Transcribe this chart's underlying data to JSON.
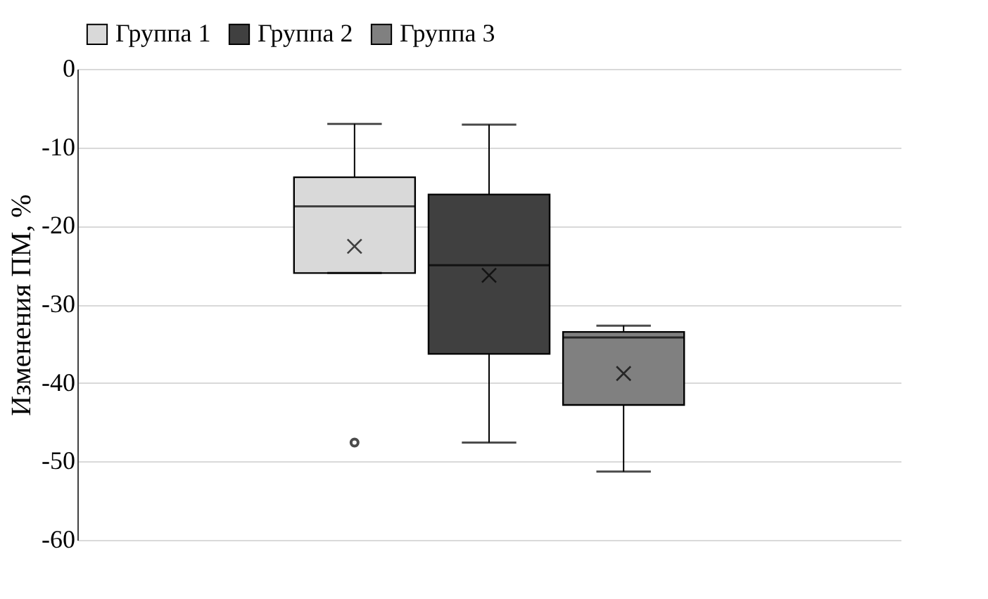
{
  "chart_data": {
    "type": "box",
    "ylabel": "Изменения ПМ, %",
    "categories": [
      null
    ],
    "series": [
      {
        "name": "Группа 1",
        "color": "#d9d9d9",
        "boxes": [
          {
            "low": -26.0,
            "q1": -26.0,
            "median": -17.5,
            "q3": -13.8,
            "high": -7.0,
            "mean": -22.6,
            "outliers": [
              -47.6
            ]
          }
        ]
      },
      {
        "name": "Группа 2",
        "color": "#404040",
        "boxes": [
          {
            "low": -47.6,
            "q1": -36.3,
            "median": -25.0,
            "q3": -16.0,
            "high": -7.1,
            "mean": -26.3
          }
        ]
      },
      {
        "name": "Группа 3",
        "color": "#808080",
        "boxes": [
          {
            "low": -51.3,
            "q1": -42.8,
            "median": -34.2,
            "q3": -33.5,
            "high": -32.7,
            "mean": -38.8
          }
        ]
      }
    ],
    "ylim": [
      -60,
      0
    ],
    "yticks": [
      -60,
      -50,
      -40,
      -30,
      -20,
      -10,
      0
    ],
    "grid": "y",
    "legend": "top",
    "tick_labels": "y"
  }
}
